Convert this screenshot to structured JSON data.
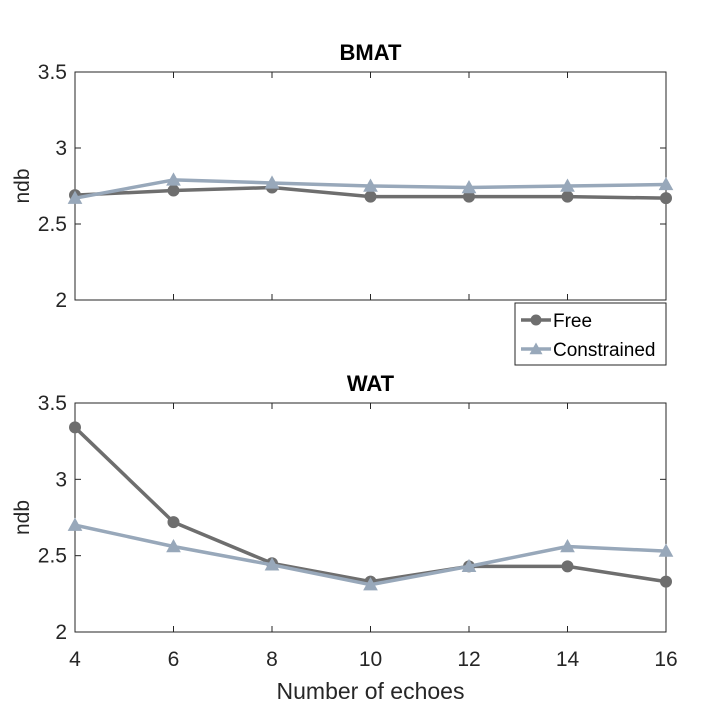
{
  "chart_data": [
    {
      "type": "line",
      "title": "BMAT",
      "xlabel": "",
      "ylabel": "ndb",
      "xlim": [
        4,
        16
      ],
      "ylim": [
        2,
        3.5
      ],
      "x": [
        4,
        6,
        8,
        10,
        12,
        14,
        16
      ],
      "xticks": [
        "4",
        "6",
        "8",
        "10",
        "12",
        "14",
        "16"
      ],
      "yticks": [
        "2",
        "2.5",
        "3",
        "3.5"
      ],
      "show_xtick_labels": false,
      "series": [
        {
          "name": "Free",
          "marker": "circle",
          "color": "#6e6e6e",
          "values": [
            2.69,
            2.72,
            2.74,
            2.68,
            2.68,
            2.68,
            2.67
          ]
        },
        {
          "name": "Constrained",
          "marker": "triangle",
          "color": "#98a8ba",
          "values": [
            2.67,
            2.79,
            2.77,
            2.75,
            2.74,
            2.75,
            2.76
          ]
        }
      ],
      "legend": {
        "placement": "bottom-right-outside",
        "entries": [
          "Free",
          "Constrained"
        ]
      }
    },
    {
      "type": "line",
      "title": "WAT",
      "xlabel": "Number of echoes",
      "ylabel": "ndb",
      "xlim": [
        4,
        16
      ],
      "ylim": [
        2,
        3.5
      ],
      "x": [
        4,
        6,
        8,
        10,
        12,
        14,
        16
      ],
      "xticks": [
        "4",
        "6",
        "8",
        "10",
        "12",
        "14",
        "16"
      ],
      "yticks": [
        "2",
        "2.5",
        "3",
        "3.5"
      ],
      "show_xtick_labels": true,
      "series": [
        {
          "name": "Free",
          "marker": "circle",
          "color": "#6e6e6e",
          "values": [
            3.34,
            2.72,
            2.45,
            2.33,
            2.43,
            2.43,
            2.33
          ]
        },
        {
          "name": "Constrained",
          "marker": "triangle",
          "color": "#98a8ba",
          "values": [
            2.7,
            2.56,
            2.44,
            2.31,
            2.43,
            2.56,
            2.53
          ]
        }
      ]
    }
  ]
}
